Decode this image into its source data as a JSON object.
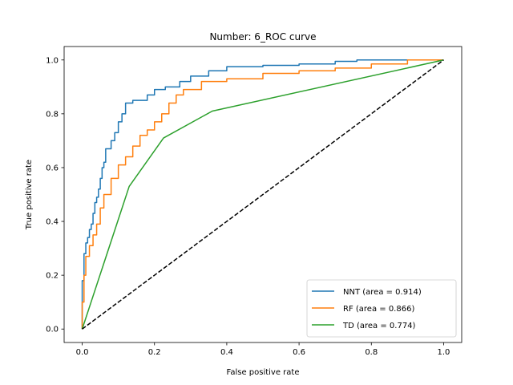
{
  "chart_data": {
    "type": "line",
    "title": "Number: 6_ROC curve",
    "xlabel": "False positive rate",
    "ylabel": "True positive rate",
    "xlim": [
      -0.05,
      1.05
    ],
    "ylim": [
      -0.05,
      1.05
    ],
    "xticks": [
      "0.0",
      "0.2",
      "0.4",
      "0.6",
      "0.8",
      "1.0"
    ],
    "yticks": [
      "0.0",
      "0.2",
      "0.4",
      "0.6",
      "0.8",
      "1.0"
    ],
    "grid": false,
    "legend_position": "lower-right",
    "series": [
      {
        "name": "NNT (area = 0.914)",
        "color": "#1f77b4",
        "step": true,
        "points": [
          [
            0,
            0
          ],
          [
            0,
            0.18
          ],
          [
            0.005,
            0.28
          ],
          [
            0.01,
            0.32
          ],
          [
            0.015,
            0.34
          ],
          [
            0.02,
            0.37
          ],
          [
            0.025,
            0.39
          ],
          [
            0.03,
            0.43
          ],
          [
            0.035,
            0.47
          ],
          [
            0.04,
            0.49
          ],
          [
            0.045,
            0.52
          ],
          [
            0.05,
            0.56
          ],
          [
            0.055,
            0.6
          ],
          [
            0.06,
            0.62
          ],
          [
            0.065,
            0.67
          ],
          [
            0.08,
            0.7
          ],
          [
            0.09,
            0.73
          ],
          [
            0.1,
            0.77
          ],
          [
            0.11,
            0.8
          ],
          [
            0.12,
            0.84
          ],
          [
            0.14,
            0.85
          ],
          [
            0.18,
            0.87
          ],
          [
            0.2,
            0.89
          ],
          [
            0.23,
            0.9
          ],
          [
            0.27,
            0.92
          ],
          [
            0.3,
            0.94
          ],
          [
            0.35,
            0.96
          ],
          [
            0.4,
            0.975
          ],
          [
            0.5,
            0.98
          ],
          [
            0.6,
            0.985
          ],
          [
            0.7,
            0.995
          ],
          [
            0.76,
            1.0
          ],
          [
            1.0,
            1.0
          ]
        ]
      },
      {
        "name": "RF (area = 0.866)",
        "color": "#ff7f0e",
        "step": true,
        "points": [
          [
            0,
            0
          ],
          [
            0,
            0.1
          ],
          [
            0.005,
            0.2
          ],
          [
            0.01,
            0.27
          ],
          [
            0.02,
            0.31
          ],
          [
            0.03,
            0.35
          ],
          [
            0.04,
            0.39
          ],
          [
            0.05,
            0.45
          ],
          [
            0.06,
            0.5
          ],
          [
            0.08,
            0.56
          ],
          [
            0.1,
            0.61
          ],
          [
            0.12,
            0.64
          ],
          [
            0.14,
            0.68
          ],
          [
            0.16,
            0.72
          ],
          [
            0.18,
            0.74
          ],
          [
            0.2,
            0.77
          ],
          [
            0.22,
            0.8
          ],
          [
            0.24,
            0.84
          ],
          [
            0.26,
            0.87
          ],
          [
            0.28,
            0.89
          ],
          [
            0.33,
            0.92
          ],
          [
            0.4,
            0.93
          ],
          [
            0.5,
            0.95
          ],
          [
            0.6,
            0.96
          ],
          [
            0.7,
            0.97
          ],
          [
            0.8,
            0.985
          ],
          [
            0.9,
            1.0
          ],
          [
            1.0,
            1.0
          ]
        ]
      },
      {
        "name": "TD (area = 0.774)",
        "color": "#2ca02c",
        "step": false,
        "points": [
          [
            0,
            0
          ],
          [
            0.13,
            0.53
          ],
          [
            0.225,
            0.71
          ],
          [
            0.36,
            0.81
          ],
          [
            1.0,
            1.0
          ]
        ]
      },
      {
        "name": "",
        "color": "#000000",
        "dashed": true,
        "points": [
          [
            0,
            0
          ],
          [
            1,
            1
          ]
        ]
      }
    ]
  }
}
